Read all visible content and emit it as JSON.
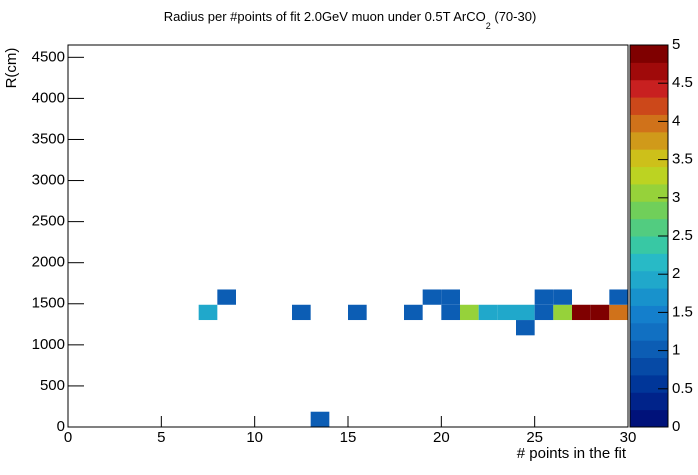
{
  "chart_data": {
    "type": "heatmap",
    "title": [
      "Radius per #points of fit 2.0GeV muon under 0.5T ArCO",
      "2",
      " (70-30)"
    ],
    "x_label": "# points in the fit",
    "y_label": "R(cm)",
    "xlim": [
      0,
      30
    ],
    "ylim": [
      0,
      4650
    ],
    "zlim": [
      0,
      5
    ],
    "xticks": [
      0,
      5,
      10,
      15,
      20,
      25,
      30
    ],
    "yticks": [
      0,
      500,
      1000,
      1500,
      2000,
      2500,
      3000,
      3500,
      4000,
      4500
    ],
    "zticks": [
      0,
      0.5,
      1,
      1.5,
      2,
      2.5,
      3,
      3.5,
      4,
      4.5,
      5
    ],
    "xbin_width": 1,
    "ybin_width": 186,
    "palette": [
      "#00127a",
      "#00238a",
      "#003699",
      "#064aa6",
      "#0c5db4",
      "#1170c2",
      "#147fcc",
      "#1892cc",
      "#20a8cb",
      "#28bac6",
      "#38c8a4",
      "#52cc80",
      "#70cf5a",
      "#96d23a",
      "#bcd322",
      "#cdc01a",
      "#d09a1a",
      "#d0721a",
      "#cc481a",
      "#c82020",
      "#a00a0a",
      "#7f0000"
    ],
    "cells": [
      {
        "x": 13,
        "y": 0,
        "value": 1
      },
      {
        "x": 24,
        "y": 1116,
        "value": 1
      },
      {
        "x": 7,
        "y": 1302,
        "value": 2
      },
      {
        "x": 12,
        "y": 1302,
        "value": 1
      },
      {
        "x": 15,
        "y": 1302,
        "value": 1
      },
      {
        "x": 18,
        "y": 1302,
        "value": 1
      },
      {
        "x": 20,
        "y": 1302,
        "value": 1
      },
      {
        "x": 21,
        "y": 1302,
        "value": 3
      },
      {
        "x": 22,
        "y": 1302,
        "value": 2
      },
      {
        "x": 23,
        "y": 1302,
        "value": 2
      },
      {
        "x": 24,
        "y": 1302,
        "value": 2
      },
      {
        "x": 25,
        "y": 1302,
        "value": 1
      },
      {
        "x": 26,
        "y": 1302,
        "value": 3
      },
      {
        "x": 27,
        "y": 1302,
        "value": 5
      },
      {
        "x": 28,
        "y": 1302,
        "value": 5
      },
      {
        "x": 29,
        "y": 1302,
        "value": 4
      },
      {
        "x": 8,
        "y": 1488,
        "value": 1
      },
      {
        "x": 19,
        "y": 1488,
        "value": 1
      },
      {
        "x": 20,
        "y": 1488,
        "value": 1
      },
      {
        "x": 25,
        "y": 1488,
        "value": 1
      },
      {
        "x": 26,
        "y": 1488,
        "value": 1
      },
      {
        "x": 29,
        "y": 1488,
        "value": 1
      }
    ]
  }
}
